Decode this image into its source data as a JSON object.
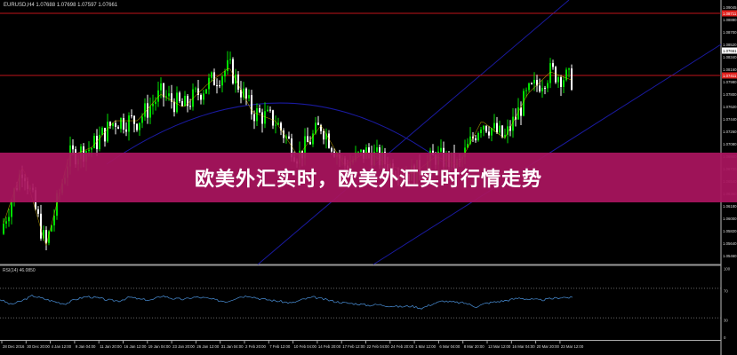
{
  "header": {
    "symbol": "EURUSD,H4",
    "quote": "1.07688 1.07698 1.07597 1.07661"
  },
  "banner": {
    "title": "欧美外汇实时，欧美外汇实时行情走势"
  },
  "indicator": {
    "label": "RSI(14) 46.0850",
    "levels": [
      70,
      30
    ],
    "scale_labels": [
      "100",
      "70",
      "30",
      "0"
    ],
    "values": [
      55,
      48,
      53,
      60,
      56,
      52,
      49,
      55,
      59,
      57,
      54,
      53,
      58,
      55,
      54,
      60,
      56,
      55,
      58,
      57,
      54,
      52,
      58,
      60,
      56,
      54,
      52,
      50,
      55,
      58,
      55,
      52,
      50,
      49,
      47,
      48,
      46,
      45,
      46,
      43,
      49,
      53,
      51,
      50,
      45,
      50,
      52,
      54,
      57,
      55,
      54,
      56,
      58,
      57
    ]
  },
  "price_axis": {
    "labels": [
      "1.09045",
      "1.08880",
      "1.08700",
      "1.08520",
      "1.08340",
      "1.08160",
      "1.07980",
      "1.07800",
      "1.07620",
      "1.07440",
      "1.07260",
      "1.07080",
      "1.06900",
      "1.06720",
      "1.06540",
      "1.06360",
      "1.06180",
      "1.06000",
      "1.05820",
      "1.05640",
      "1.05460"
    ],
    "markers": [
      {
        "label": "1.08711",
        "color": "#e0201c"
      },
      {
        "label": "1.07661",
        "color": "#ffffff"
      },
      {
        "label": "1.07411",
        "color": "#e0201c"
      }
    ],
    "range": [
      1.0921,
      1.0505
    ]
  },
  "time_axis": {
    "labels": [
      "28 Dec 2016",
      "30 Dec 20:00",
      "4 Jan 12:00",
      "9 Jan 04:00",
      "11 Jan 20:00",
      "16 Jan 12:00",
      "19 Jan 04:00",
      "23 Jan 20:00",
      "26 Jan 12:00",
      "31 Jan 04:00",
      "2 Feb 20:00",
      "7 Feb 12:00",
      "10 Feb 04:00",
      "14 Feb 20:00",
      "17 Feb 12:00",
      "22 Feb 04:00",
      "24 Feb 20:00",
      "1 Mar 12:00",
      "6 Mar 04:00",
      "8 Mar 20:00",
      "13 Mar 12:00",
      "16 Mar 04:00",
      "20 Mar 20:00",
      "23 Mar 12:00"
    ]
  },
  "price_path": [
    1.0553,
    1.066,
    1.0533,
    1.0675,
    1.0689,
    1.0731,
    1.0731,
    1.0773,
    1.0752,
    1.0787,
    1.0815,
    1.0745,
    1.0731,
    1.0675,
    1.0724,
    1.0661,
    1.0682,
    1.0661,
    1.0647,
    1.0675,
    1.0661,
    1.0731,
    1.0703,
    1.0773,
    1.0808,
    1.0794
  ],
  "colors": {
    "bull": "#00e000",
    "bear": "#ffffff",
    "level_line": "#c0141a",
    "channel": "#1a1aa0",
    "ma": "#e0c000",
    "rsi": "#4a90d9",
    "banner": "#aa145f"
  }
}
